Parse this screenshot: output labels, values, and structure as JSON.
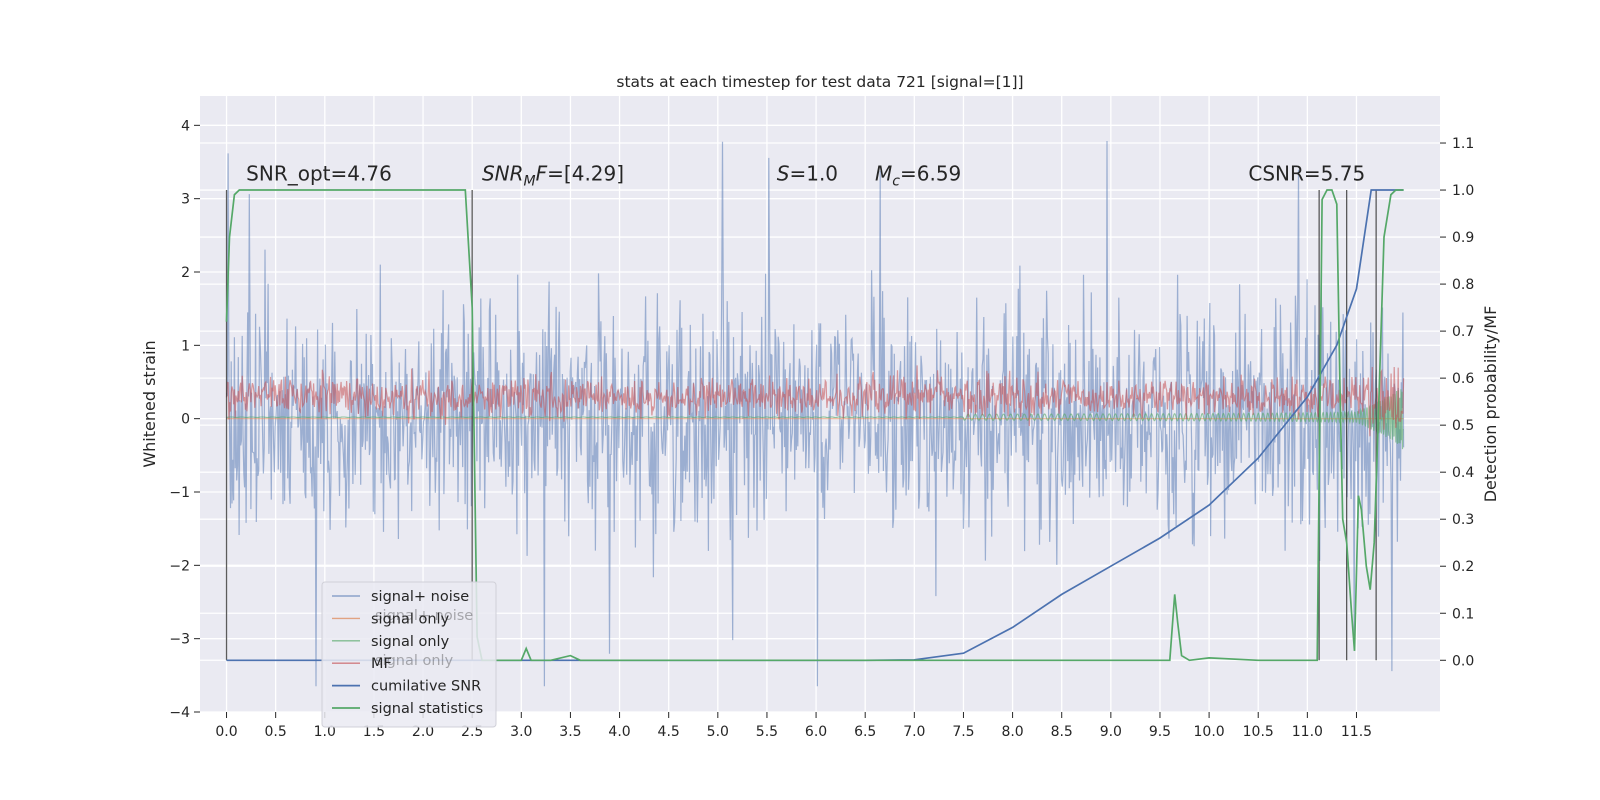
{
  "chart_data": {
    "type": "line",
    "title": "stats at each timestep for test data 721 [signal=[1]]",
    "xlabel": "",
    "ylabel": "Whitened strain",
    "ylabel_right": "Detection probability/MF",
    "xlim": [
      -0.27,
      12.35
    ],
    "ylim": [
      -4.0,
      4.4
    ],
    "ylim_right": [
      -0.11,
      1.2
    ],
    "x_ticks": [
      "0.0",
      "0.5",
      "1.0",
      "1.5",
      "2.0",
      "2.5",
      "3.0",
      "3.5",
      "4.0",
      "4.5",
      "5.0",
      "5.5",
      "6.0",
      "6.5",
      "7.0",
      "7.5",
      "8.0",
      "8.5",
      "9.0",
      "9.5",
      "10.0",
      "10.5",
      "11.0",
      "11.5"
    ],
    "y_ticks": [
      "4",
      "3",
      "2",
      "1",
      "0",
      "−1",
      "−2",
      "−3",
      "−4"
    ],
    "y_ticks_right": [
      "1.1",
      "1.0",
      "0.9",
      "0.8",
      "0.7",
      "0.6",
      "0.5",
      "0.4",
      "0.3",
      "0.2",
      "0.1",
      "0.0"
    ],
    "grid": true,
    "legend_placement": "lower-left",
    "annotations": [
      {
        "text": "SNR_opt=4.76",
        "x": 0.2
      },
      {
        "text": "SNR_MF=[4.29]",
        "x": 2.6
      },
      {
        "text": "S=1.0",
        "x": 5.6
      },
      {
        "text": "M_c=6.59",
        "x": 6.6
      },
      {
        "text": "CSNR=5.75",
        "x": 10.4
      }
    ],
    "legend": [
      "signal+ noise",
      "signal only",
      "signal only",
      "MF",
      "cumilative SNR",
      "signal statistics"
    ],
    "legend_ghost": [
      "signal+ noise",
      "signal only"
    ],
    "series": [
      {
        "name": "signal+ noise",
        "axis": "left",
        "color": "#4c72b0",
        "description": "dense white noise, amplitude ~±2 with spikes to ~4.1 / −3.6",
        "x_range": [
          0.0,
          11.98
        ]
      },
      {
        "name": "signal only",
        "axis": "left",
        "color": "#dd8452",
        "values_note": "~0"
      },
      {
        "name": "signal only",
        "axis": "left",
        "color": "#55a868",
        "description": "chirp, ~0 until 8, growing to ±0.6 near 11.8",
        "x_range": [
          0.0,
          11.98
        ]
      },
      {
        "name": "MF",
        "axis": "left",
        "color": "#c44e52",
        "description": "noisy band centered ~0.3, amplitude ~0.3",
        "x_range": [
          0.0,
          11.98
        ]
      },
      {
        "name": "cumilative SNR",
        "axis": "right",
        "x": [
          0.0,
          6.5,
          7.0,
          7.5,
          8.0,
          8.5,
          9.0,
          9.5,
          10.0,
          10.5,
          11.0,
          11.3,
          11.5,
          11.65,
          11.98
        ],
        "values": [
          0.0,
          0.0,
          0.001,
          0.015,
          0.07,
          0.14,
          0.2,
          0.26,
          0.33,
          0.43,
          0.56,
          0.67,
          0.79,
          1.0,
          1.0
        ]
      },
      {
        "name": "signal statistics",
        "axis": "right",
        "x": [
          0.0,
          0.03,
          0.08,
          0.13,
          0.5,
          1.0,
          1.5,
          2.0,
          2.43,
          2.5,
          2.55,
          2.6,
          2.9,
          3.0,
          3.05,
          3.1,
          3.3,
          3.5,
          3.6,
          4.0,
          9.6,
          9.65,
          9.68,
          9.72,
          9.8,
          10.0,
          10.5,
          11.1,
          11.15,
          11.2,
          11.25,
          11.3,
          11.33,
          11.36,
          11.4,
          11.45,
          11.48,
          11.52,
          11.55,
          11.6,
          11.64,
          11.68,
          11.72,
          11.78,
          11.85,
          11.9,
          11.98
        ],
        "values": [
          0.72,
          0.9,
          0.99,
          1.0,
          1.0,
          1.0,
          1.0,
          1.0,
          1.0,
          0.75,
          0.05,
          0.0,
          0.0,
          0.0,
          0.025,
          0.0,
          0.0,
          0.01,
          0.0,
          0.0,
          0.0,
          0.14,
          0.08,
          0.01,
          0.0,
          0.005,
          0.0,
          0.0,
          0.98,
          1.0,
          1.0,
          0.97,
          0.6,
          0.3,
          0.25,
          0.1,
          0.02,
          0.35,
          0.32,
          0.2,
          0.15,
          0.25,
          0.5,
          0.9,
          0.99,
          1.0,
          1.0
        ]
      }
    ]
  }
}
